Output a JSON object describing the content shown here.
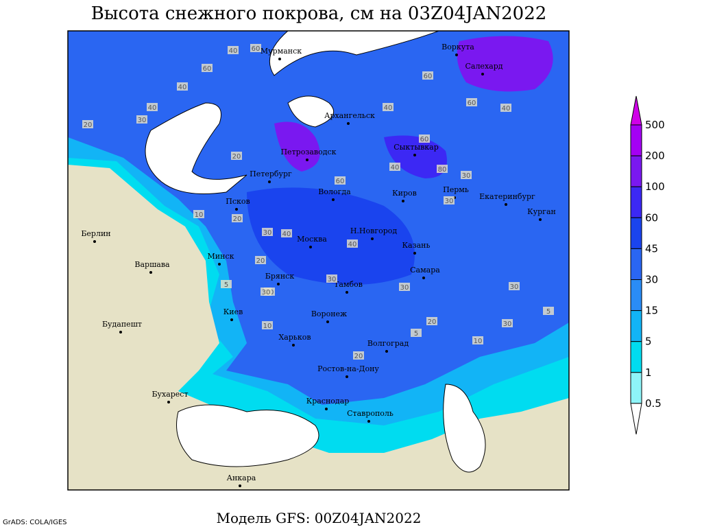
{
  "title": "Высота снежного покрова, см на 03Z04JAN2022",
  "footer": "Модель GFS: 00Z04JAN2022",
  "credit": "GrADS: COLA/IGES",
  "colorbar": {
    "labels": [
      500,
      200,
      100,
      60,
      45,
      30,
      15,
      5,
      1,
      0.5
    ],
    "colors": [
      "#d000e8",
      "#a400f4",
      "#7a18f0",
      "#3c28f4",
      "#1a44ee",
      "#2a66f2",
      "#2a8cf6",
      "#12b4f6",
      "#00dcf0",
      "#8ef4f8",
      "#ffffff"
    ]
  },
  "cities": [
    "Мурманск",
    "Воркута",
    "Салехард",
    "Архангельск",
    "Петрозаводск",
    "Сыктывкар",
    "Петербург",
    "Вологда",
    "Киров",
    "Пермь",
    "Екатеринбург",
    "Курган",
    "Псков",
    "Н.Новгород",
    "Москва",
    "Казань",
    "Берлин",
    "Варшава",
    "Минск",
    "Самара",
    "Брянск",
    "Тамбов",
    "Киев",
    "Воронеж",
    "Будапешт",
    "Харьков",
    "Волгоград",
    "Ростов-на-Дону",
    "Бухарест",
    "Краснодар",
    "Ставрополь",
    "Анкара"
  ],
  "contour_labels": [
    40,
    60,
    60,
    40,
    40,
    30,
    20,
    20,
    60,
    40,
    60,
    40,
    60,
    40,
    60,
    80,
    30,
    30,
    20,
    10,
    20,
    40,
    30,
    40,
    30,
    30,
    5,
    20,
    10,
    30,
    20,
    30,
    5,
    10,
    20,
    30,
    5
  ]
}
